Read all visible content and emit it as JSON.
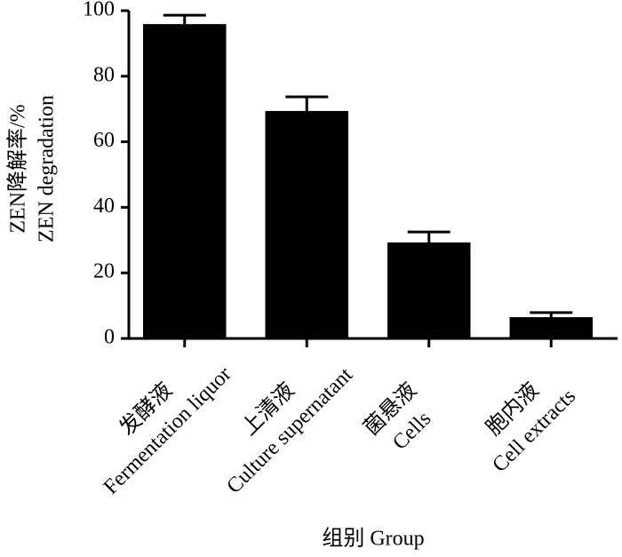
{
  "chart_data": {
    "type": "bar",
    "ylabel": [
      "ZEN降解率/%",
      "ZEN degradation"
    ],
    "xlabel": "组别  Group",
    "categories": [
      [
        "发酵液",
        "Fermentation liquor"
      ],
      [
        "上清液",
        "Culture supernatant"
      ],
      [
        "菌悬液",
        "Cells"
      ],
      [
        "胞内液",
        "Cell extracts"
      ]
    ],
    "values": [
      95.9,
      69.4,
      29.3,
      6.5
    ],
    "errors": [
      2.7,
      4.3,
      3.2,
      1.4
    ],
    "color": "#000000",
    "ylim": [
      0,
      100
    ],
    "yticks": [
      0,
      20,
      40,
      60,
      80,
      100
    ]
  }
}
